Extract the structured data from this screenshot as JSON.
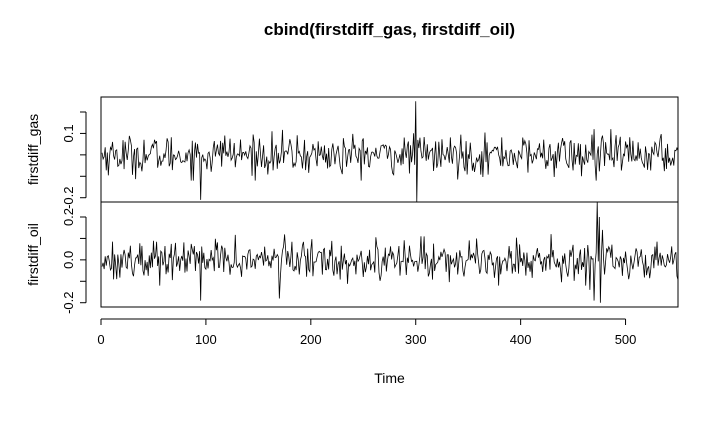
{
  "chart_data": {
    "type": "line",
    "title": "cbind(firstdiff_gas, firstdiff_oil)",
    "xlabel": "Time",
    "xlim": [
      0,
      550
    ],
    "x_ticks": [
      "0",
      "100",
      "200",
      "300",
      "400",
      "500"
    ],
    "x_tick_values": [
      0,
      100,
      200,
      300,
      400,
      500
    ],
    "n_points": 550,
    "grid": false,
    "legend": "none",
    "line_color": "#000000",
    "panels": [
      {
        "name": "firstdiff_gas",
        "ylabel": "firstdiff_gas",
        "ylim": [
          -0.22,
          0.27
        ],
        "y_ticks": [
          "-0.2",
          "0.1"
        ],
        "y_tick_values": [
          -0.2,
          0.1
        ],
        "y_minor_ticks": [
          -0.1,
          0.0,
          0.2
        ],
        "base_sd": 0.045,
        "events": [
          {
            "t": 95,
            "value": -0.21
          },
          {
            "t": 118,
            "value": 0.09
          },
          {
            "t": 230,
            "value": -0.09
          },
          {
            "t": 300,
            "value": 0.25
          },
          {
            "t": 301,
            "value": -0.22
          },
          {
            "t": 320,
            "value": -0.06
          },
          {
            "t": 458,
            "value": -0.1
          },
          {
            "t": 470,
            "value": 0.12
          },
          {
            "t": 472,
            "value": -0.12
          },
          {
            "t": 478,
            "value": 0.09
          }
        ]
      },
      {
        "name": "firstdiff_oil",
        "ylabel": "firstdiff_oil",
        "ylim": [
          -0.22,
          0.27
        ],
        "y_ticks": [
          "-0.2",
          "0.0",
          "0.2"
        ],
        "y_tick_values": [
          -0.2,
          0.0,
          0.2
        ],
        "y_minor_ticks": [
          -0.1,
          0.1
        ],
        "base_sd": 0.045,
        "events": [
          {
            "t": 95,
            "value": -0.19
          },
          {
            "t": 170,
            "value": -0.18
          },
          {
            "t": 462,
            "value": -0.12
          },
          {
            "t": 466,
            "value": -0.14
          },
          {
            "t": 470,
            "value": -0.19
          },
          {
            "t": 473,
            "value": 0.27
          },
          {
            "t": 475,
            "value": 0.2
          },
          {
            "t": 476,
            "value": -0.2
          },
          {
            "t": 478,
            "value": 0.14
          }
        ]
      }
    ]
  }
}
